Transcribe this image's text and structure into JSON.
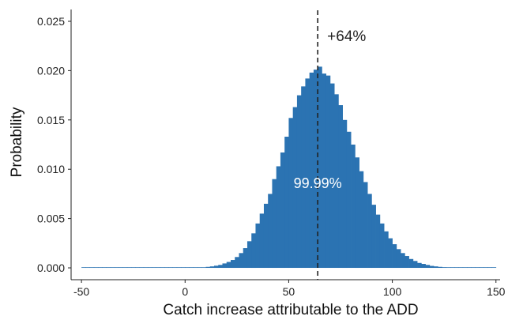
{
  "chart_data": {
    "type": "bar",
    "xlabel": "Catch increase attributable to the ADD",
    "ylabel": "Probability",
    "xlim": [
      -55,
      152
    ],
    "ylim": [
      -0.0012,
      0.0262
    ],
    "xticks": [
      -50,
      0,
      50,
      100,
      150
    ],
    "yticks": [
      0.0,
      0.005,
      0.01,
      0.015,
      0.02,
      0.025
    ],
    "ytick_labels": [
      "0.000",
      "0.005",
      "0.010",
      "0.015",
      "0.020",
      "0.025"
    ],
    "bin_width": 2,
    "color": "#2b73b2",
    "grid": false,
    "vline": {
      "x": 64,
      "style": "dashed",
      "label": "+64%"
    },
    "area_label": "99.99%",
    "bins": [
      {
        "x": -50,
        "y": 0.0
      },
      {
        "x": -48,
        "y": 0.0
      },
      {
        "x": -46,
        "y": 0.0
      },
      {
        "x": -44,
        "y": 0.0
      },
      {
        "x": -42,
        "y": 0.0
      },
      {
        "x": -40,
        "y": 0.0
      },
      {
        "x": -38,
        "y": 0.0
      },
      {
        "x": -36,
        "y": 0.0
      },
      {
        "x": -34,
        "y": 0.0
      },
      {
        "x": -32,
        "y": 0.0
      },
      {
        "x": -30,
        "y": 0.0
      },
      {
        "x": -28,
        "y": 0.0
      },
      {
        "x": -26,
        "y": 0.0
      },
      {
        "x": -24,
        "y": 0.0
      },
      {
        "x": -22,
        "y": 0.0
      },
      {
        "x": -20,
        "y": 0.0
      },
      {
        "x": -18,
        "y": 0.0
      },
      {
        "x": -16,
        "y": 0.0
      },
      {
        "x": -14,
        "y": 0.0
      },
      {
        "x": -12,
        "y": 0.0
      },
      {
        "x": -10,
        "y": 0.0
      },
      {
        "x": -8,
        "y": 0.0
      },
      {
        "x": -6,
        "y": 0.0
      },
      {
        "x": -4,
        "y": 0.0
      },
      {
        "x": -2,
        "y": 0.0
      },
      {
        "x": 0,
        "y": 1e-05
      },
      {
        "x": 2,
        "y": 2e-05
      },
      {
        "x": 4,
        "y": 3e-05
      },
      {
        "x": 6,
        "y": 4e-05
      },
      {
        "x": 8,
        "y": 6e-05
      },
      {
        "x": 10,
        "y": 0.0001
      },
      {
        "x": 12,
        "y": 0.00015
      },
      {
        "x": 14,
        "y": 0.00022
      },
      {
        "x": 16,
        "y": 0.0003
      },
      {
        "x": 18,
        "y": 0.00045
      },
      {
        "x": 20,
        "y": 0.0006
      },
      {
        "x": 22,
        "y": 0.0008
      },
      {
        "x": 24,
        "y": 0.0011
      },
      {
        "x": 26,
        "y": 0.0015
      },
      {
        "x": 28,
        "y": 0.002
      },
      {
        "x": 30,
        "y": 0.0027
      },
      {
        "x": 32,
        "y": 0.0035
      },
      {
        "x": 34,
        "y": 0.0045
      },
      {
        "x": 36,
        "y": 0.0055
      },
      {
        "x": 38,
        "y": 0.0065
      },
      {
        "x": 40,
        "y": 0.0075
      },
      {
        "x": 42,
        "y": 0.009
      },
      {
        "x": 44,
        "y": 0.0103
      },
      {
        "x": 46,
        "y": 0.0117
      },
      {
        "x": 48,
        "y": 0.0133
      },
      {
        "x": 50,
        "y": 0.0152
      },
      {
        "x": 52,
        "y": 0.0163
      },
      {
        "x": 54,
        "y": 0.0175
      },
      {
        "x": 56,
        "y": 0.0184
      },
      {
        "x": 58,
        "y": 0.0192
      },
      {
        "x": 60,
        "y": 0.0198
      },
      {
        "x": 62,
        "y": 0.0201
      },
      {
        "x": 64,
        "y": 0.0204
      },
      {
        "x": 66,
        "y": 0.0197
      },
      {
        "x": 68,
        "y": 0.0195
      },
      {
        "x": 70,
        "y": 0.0187
      },
      {
        "x": 72,
        "y": 0.0176
      },
      {
        "x": 74,
        "y": 0.0165
      },
      {
        "x": 76,
        "y": 0.015
      },
      {
        "x": 78,
        "y": 0.0138
      },
      {
        "x": 80,
        "y": 0.0125
      },
      {
        "x": 82,
        "y": 0.0112
      },
      {
        "x": 84,
        "y": 0.0098
      },
      {
        "x": 86,
        "y": 0.0087
      },
      {
        "x": 88,
        "y": 0.0075
      },
      {
        "x": 90,
        "y": 0.0064
      },
      {
        "x": 92,
        "y": 0.0054
      },
      {
        "x": 94,
        "y": 0.0045
      },
      {
        "x": 96,
        "y": 0.0037
      },
      {
        "x": 98,
        "y": 0.003
      },
      {
        "x": 100,
        "y": 0.0024
      },
      {
        "x": 102,
        "y": 0.0019
      },
      {
        "x": 104,
        "y": 0.0015
      },
      {
        "x": 106,
        "y": 0.0012
      },
      {
        "x": 108,
        "y": 0.0009
      },
      {
        "x": 110,
        "y": 0.0007
      },
      {
        "x": 112,
        "y": 0.0005
      },
      {
        "x": 114,
        "y": 0.0004
      },
      {
        "x": 116,
        "y": 0.0003
      },
      {
        "x": 118,
        "y": 0.0002
      },
      {
        "x": 120,
        "y": 0.00015
      },
      {
        "x": 122,
        "y": 0.0001
      },
      {
        "x": 124,
        "y": 7e-05
      },
      {
        "x": 126,
        "y": 5e-05
      },
      {
        "x": 128,
        "y": 3e-05
      },
      {
        "x": 130,
        "y": 2e-05
      },
      {
        "x": 132,
        "y": 1e-05
      },
      {
        "x": 134,
        "y": 0.0
      },
      {
        "x": 136,
        "y": 0.0
      },
      {
        "x": 138,
        "y": 0.0
      },
      {
        "x": 140,
        "y": 0.0
      },
      {
        "x": 142,
        "y": 0.0
      },
      {
        "x": 144,
        "y": 0.0
      },
      {
        "x": 146,
        "y": 0.0
      },
      {
        "x": 148,
        "y": 0.0
      }
    ]
  }
}
